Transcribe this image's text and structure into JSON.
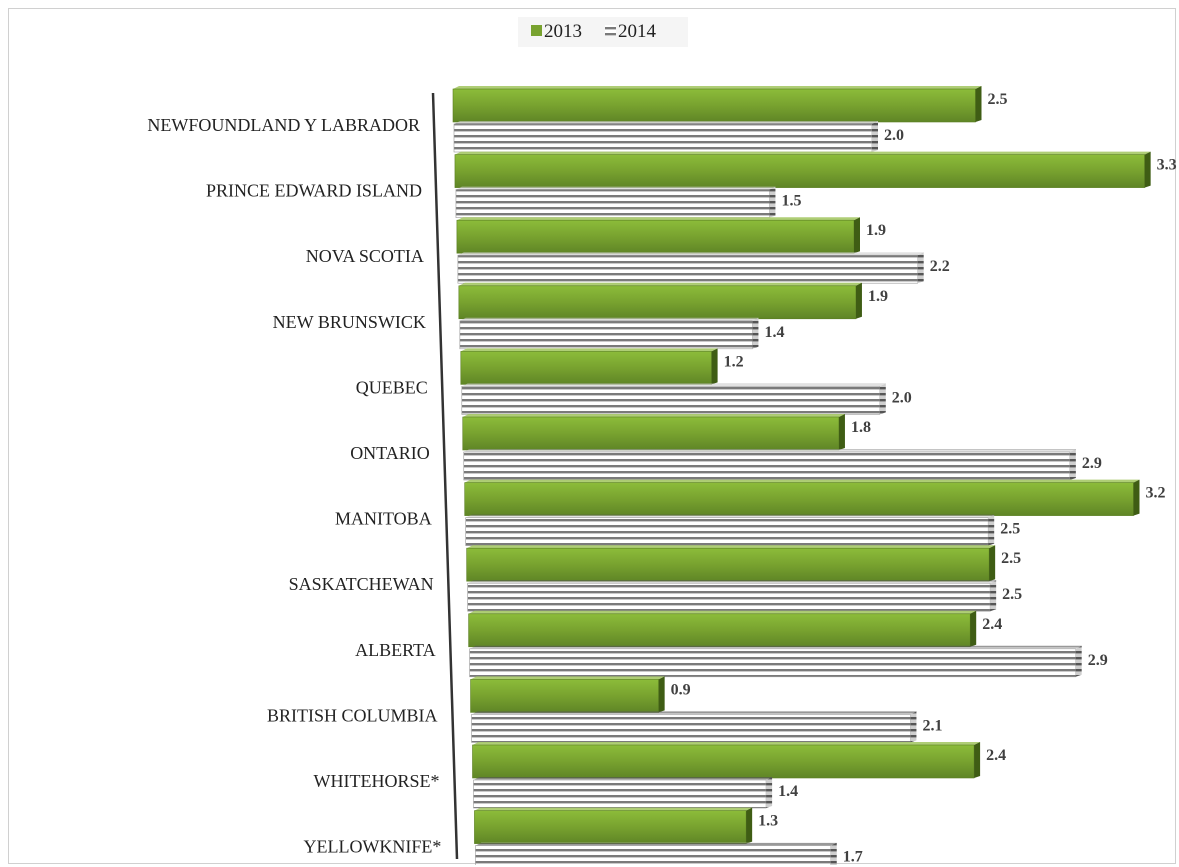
{
  "chart_data": {
    "type": "bar",
    "orientation": "horizontal",
    "title": "",
    "xlabel": "",
    "ylabel": "",
    "categories": [
      "NEWFOUNDLAND Y LABRADOR",
      "PRINCE EDWARD ISLAND",
      "NOVA SCOTIA",
      "NEW BRUNSWICK",
      "QUEBEC",
      "ONTARIO",
      "MANITOBA",
      "SASKATCHEWAN",
      "ALBERTA",
      "BRITISH COLUMBIA",
      "WHITEHORSE*",
      "YELLOWKNIFE*"
    ],
    "series": [
      {
        "name": "2013",
        "values": [
          2.5,
          3.3,
          1.9,
          1.9,
          1.2,
          1.8,
          3.2,
          2.5,
          2.4,
          0.9,
          2.4,
          1.3
        ],
        "labels": [
          "2.5",
          "3.3",
          "1.9",
          "1.9",
          "1.2",
          "1.8",
          "3.2",
          "2.5",
          "2.4",
          "0.9",
          "2.4",
          "1.3"
        ],
        "color": "#78a22f"
      },
      {
        "name": "2014",
        "values": [
          2.0,
          1.5,
          2.2,
          1.4,
          2.0,
          2.9,
          2.5,
          2.5,
          2.9,
          2.1,
          1.4,
          1.7
        ],
        "labels": [
          "2.0",
          "1.5",
          "2.2",
          "1.4",
          "2.0",
          "2.9",
          "2.5",
          "2.5",
          "2.9",
          "2.1",
          "1.4",
          "1.7"
        ],
        "color": "#808080",
        "pattern": "horizontal-stripes"
      }
    ],
    "legend": {
      "position": "top",
      "entries": [
        "2013",
        "2014"
      ]
    },
    "grid": false
  }
}
